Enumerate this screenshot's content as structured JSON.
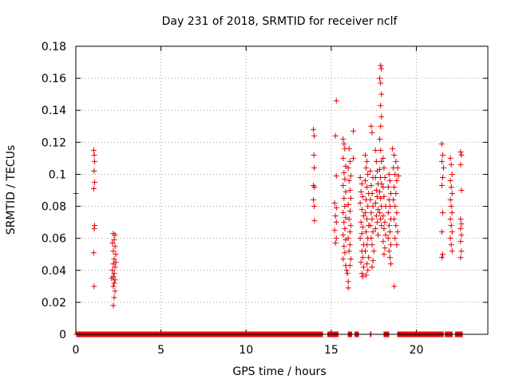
{
  "chart_data": {
    "type": "scatter",
    "title": "Day 231 of 2018, SRMTID for receiver nclf",
    "xlabel": "GPS time / hours",
    "ylabel": "SRMTID / TECUs",
    "xlim": [
      0,
      24.2
    ],
    "ylim": [
      0,
      0.18
    ],
    "x_ticks": [
      0,
      5,
      10,
      15,
      20
    ],
    "y_ticks": [
      0,
      0.02,
      0.04,
      0.06,
      0.08,
      0.1,
      0.12,
      0.14,
      0.16,
      0.18
    ],
    "x_tick_labels": [
      "0",
      "5",
      "10",
      "15",
      "20"
    ],
    "y_tick_labels": [
      "0",
      "0.02",
      "0.04",
      "0.06",
      "0.08",
      "0.1",
      "0.12",
      "0.14",
      "0.16",
      "0.18"
    ],
    "grid": true,
    "marker": "+",
    "color": "#e00000",
    "zero_ranges": [
      [
        0.05,
        14.5
      ],
      [
        14.8,
        15.4
      ],
      [
        16.0,
        16.2
      ],
      [
        16.4,
        16.6
      ],
      [
        17.3,
        17.35
      ],
      [
        18.1,
        18.4
      ],
      [
        18.9,
        21.6
      ],
      [
        21.7,
        22.1
      ],
      [
        22.3,
        22.7
      ]
    ],
    "points": [
      [
        0.0,
        0.088
      ],
      [
        1.05,
        0.115
      ],
      [
        1.08,
        0.112
      ],
      [
        1.1,
        0.108
      ],
      [
        1.07,
        0.102
      ],
      [
        1.1,
        0.095
      ],
      [
        1.05,
        0.091
      ],
      [
        1.08,
        0.066
      ],
      [
        1.1,
        0.068
      ],
      [
        1.05,
        0.051
      ],
      [
        1.07,
        0.03
      ],
      [
        2.2,
        0.063
      ],
      [
        2.3,
        0.062
      ],
      [
        2.25,
        0.059
      ],
      [
        2.15,
        0.057
      ],
      [
        2.3,
        0.055
      ],
      [
        2.2,
        0.052
      ],
      [
        2.35,
        0.05
      ],
      [
        2.25,
        0.047
      ],
      [
        2.2,
        0.044
      ],
      [
        2.3,
        0.042
      ],
      [
        2.15,
        0.04
      ],
      [
        2.25,
        0.038
      ],
      [
        2.2,
        0.036
      ],
      [
        2.3,
        0.034
      ],
      [
        2.25,
        0.032
      ],
      [
        2.2,
        0.03
      ],
      [
        2.3,
        0.027
      ],
      [
        2.25,
        0.023
      ],
      [
        2.2,
        0.018
      ],
      [
        2.35,
        0.045
      ],
      [
        2.1,
        0.035
      ],
      [
        13.95,
        0.128
      ],
      [
        14.0,
        0.124
      ],
      [
        13.98,
        0.112
      ],
      [
        14.0,
        0.104
      ],
      [
        13.95,
        0.093
      ],
      [
        14.02,
        0.092
      ],
      [
        13.95,
        0.084
      ],
      [
        14.0,
        0.08
      ],
      [
        14.02,
        0.071
      ],
      [
        15.3,
        0.146
      ],
      [
        15.25,
        0.124
      ],
      [
        15.3,
        0.099
      ],
      [
        15.2,
        0.082
      ],
      [
        15.3,
        0.079
      ],
      [
        15.25,
        0.074
      ],
      [
        15.3,
        0.07
      ],
      [
        15.2,
        0.065
      ],
      [
        15.3,
        0.06
      ],
      [
        15.25,
        0.057
      ],
      [
        15.7,
        0.122
      ],
      [
        15.75,
        0.119
      ],
      [
        15.8,
        0.116
      ],
      [
        15.7,
        0.11
      ],
      [
        15.85,
        0.105
      ],
      [
        15.75,
        0.101
      ],
      [
        15.8,
        0.097
      ],
      [
        15.7,
        0.093
      ],
      [
        15.85,
        0.089
      ],
      [
        15.75,
        0.085
      ],
      [
        15.8,
        0.08
      ],
      [
        15.7,
        0.076
      ],
      [
        15.85,
        0.073
      ],
      [
        15.75,
        0.07
      ],
      [
        15.8,
        0.066
      ],
      [
        15.7,
        0.062
      ],
      [
        15.85,
        0.059
      ],
      [
        15.75,
        0.055
      ],
      [
        15.8,
        0.051
      ],
      [
        15.7,
        0.047
      ],
      [
        15.85,
        0.043
      ],
      [
        15.9,
        0.04
      ],
      [
        16.0,
        0.033
      ],
      [
        16.0,
        0.029
      ],
      [
        15.95,
        0.038
      ],
      [
        16.05,
        0.116
      ],
      [
        16.1,
        0.108
      ],
      [
        16.0,
        0.104
      ],
      [
        16.15,
        0.099
      ],
      [
        16.05,
        0.096
      ],
      [
        16.1,
        0.09
      ],
      [
        16.15,
        0.085
      ],
      [
        16.0,
        0.081
      ],
      [
        16.1,
        0.077
      ],
      [
        16.05,
        0.072
      ],
      [
        16.15,
        0.068
      ],
      [
        16.1,
        0.064
      ],
      [
        16.0,
        0.06
      ],
      [
        16.1,
        0.056
      ],
      [
        16.05,
        0.052
      ],
      [
        16.15,
        0.047
      ],
      [
        16.1,
        0.043
      ],
      [
        16.3,
        0.127
      ],
      [
        16.3,
        0.11
      ],
      [
        16.7,
        0.098
      ],
      [
        16.8,
        0.094
      ],
      [
        16.75,
        0.089
      ],
      [
        16.85,
        0.086
      ],
      [
        16.7,
        0.082
      ],
      [
        16.8,
        0.078
      ],
      [
        16.9,
        0.074
      ],
      [
        16.75,
        0.07
      ],
      [
        16.85,
        0.067
      ],
      [
        16.8,
        0.063
      ],
      [
        16.7,
        0.06
      ],
      [
        16.9,
        0.056
      ],
      [
        16.8,
        0.052
      ],
      [
        16.85,
        0.048
      ],
      [
        16.75,
        0.045
      ],
      [
        16.9,
        0.042
      ],
      [
        16.8,
        0.038
      ],
      [
        16.85,
        0.036
      ],
      [
        17.0,
        0.112
      ],
      [
        17.1,
        0.108
      ],
      [
        17.05,
        0.104
      ],
      [
        17.15,
        0.1
      ],
      [
        17.0,
        0.096
      ],
      [
        17.1,
        0.092
      ],
      [
        17.2,
        0.088
      ],
      [
        17.05,
        0.084
      ],
      [
        17.15,
        0.08
      ],
      [
        17.0,
        0.076
      ],
      [
        17.1,
        0.072
      ],
      [
        17.2,
        0.068
      ],
      [
        17.05,
        0.064
      ],
      [
        17.15,
        0.06
      ],
      [
        17.1,
        0.056
      ],
      [
        17.0,
        0.052
      ],
      [
        17.2,
        0.048
      ],
      [
        17.1,
        0.044
      ],
      [
        17.15,
        0.04
      ],
      [
        17.05,
        0.037
      ],
      [
        17.35,
        0.13
      ],
      [
        17.4,
        0.126
      ],
      [
        17.3,
        0.102
      ],
      [
        17.45,
        0.098
      ],
      [
        17.35,
        0.093
      ],
      [
        17.4,
        0.088
      ],
      [
        17.3,
        0.084
      ],
      [
        17.45,
        0.08
      ],
      [
        17.35,
        0.076
      ],
      [
        17.4,
        0.072
      ],
      [
        17.3,
        0.068
      ],
      [
        17.45,
        0.064
      ],
      [
        17.35,
        0.06
      ],
      [
        17.4,
        0.056
      ],
      [
        17.5,
        0.052
      ],
      [
        17.45,
        0.046
      ],
      [
        17.4,
        0.042
      ],
      [
        17.6,
        0.115
      ],
      [
        17.65,
        0.108
      ],
      [
        17.7,
        0.102
      ],
      [
        17.6,
        0.098
      ],
      [
        17.75,
        0.094
      ],
      [
        17.65,
        0.09
      ],
      [
        17.7,
        0.086
      ],
      [
        17.6,
        0.082
      ],
      [
        17.75,
        0.078
      ],
      [
        17.65,
        0.074
      ],
      [
        17.7,
        0.07
      ],
      [
        17.6,
        0.066
      ],
      [
        17.75,
        0.062
      ],
      [
        17.9,
        0.168
      ],
      [
        17.95,
        0.166
      ],
      [
        17.85,
        0.16
      ],
      [
        17.9,
        0.157
      ],
      [
        17.95,
        0.15
      ],
      [
        17.9,
        0.143
      ],
      [
        17.95,
        0.136
      ],
      [
        17.9,
        0.13
      ],
      [
        17.85,
        0.122
      ],
      [
        17.9,
        0.115
      ],
      [
        17.95,
        0.108
      ],
      [
        17.85,
        0.103
      ],
      [
        17.9,
        0.098
      ],
      [
        17.95,
        0.094
      ],
      [
        17.85,
        0.089
      ],
      [
        17.9,
        0.085
      ],
      [
        17.95,
        0.08
      ],
      [
        17.85,
        0.076
      ],
      [
        17.9,
        0.072
      ],
      [
        17.95,
        0.068
      ],
      [
        18.05,
        0.11
      ],
      [
        18.1,
        0.104
      ],
      [
        18.15,
        0.098
      ],
      [
        18.05,
        0.092
      ],
      [
        18.1,
        0.086
      ],
      [
        18.2,
        0.08
      ],
      [
        18.05,
        0.074
      ],
      [
        18.15,
        0.07
      ],
      [
        18.1,
        0.066
      ],
      [
        18.2,
        0.062
      ],
      [
        18.05,
        0.058
      ],
      [
        18.15,
        0.054
      ],
      [
        18.1,
        0.05
      ],
      [
        18.4,
        0.1
      ],
      [
        18.45,
        0.096
      ],
      [
        18.35,
        0.092
      ],
      [
        18.5,
        0.088
      ],
      [
        18.4,
        0.084
      ],
      [
        18.45,
        0.08
      ],
      [
        18.35,
        0.076
      ],
      [
        18.5,
        0.072
      ],
      [
        18.4,
        0.068
      ],
      [
        18.45,
        0.064
      ],
      [
        18.35,
        0.06
      ],
      [
        18.5,
        0.056
      ],
      [
        18.4,
        0.052
      ],
      [
        18.45,
        0.048
      ],
      [
        18.5,
        0.044
      ],
      [
        18.7,
        0.03
      ],
      [
        18.6,
        0.116
      ],
      [
        18.7,
        0.112
      ],
      [
        18.8,
        0.108
      ],
      [
        18.65,
        0.104
      ],
      [
        18.75,
        0.1
      ],
      [
        18.85,
        0.096
      ],
      [
        18.7,
        0.092
      ],
      [
        18.8,
        0.088
      ],
      [
        18.65,
        0.084
      ],
      [
        18.75,
        0.08
      ],
      [
        18.85,
        0.076
      ],
      [
        18.7,
        0.072
      ],
      [
        18.8,
        0.068
      ],
      [
        18.9,
        0.064
      ],
      [
        18.75,
        0.06
      ],
      [
        18.85,
        0.056
      ],
      [
        18.9,
        0.104
      ],
      [
        18.95,
        0.099
      ],
      [
        21.5,
        0.119
      ],
      [
        21.55,
        0.112
      ],
      [
        21.5,
        0.108
      ],
      [
        21.6,
        0.104
      ],
      [
        21.55,
        0.098
      ],
      [
        21.5,
        0.093
      ],
      [
        21.55,
        0.076
      ],
      [
        21.5,
        0.064
      ],
      [
        21.55,
        0.05
      ],
      [
        21.5,
        0.048
      ],
      [
        22.0,
        0.11
      ],
      [
        22.05,
        0.106
      ],
      [
        22.1,
        0.1
      ],
      [
        22.0,
        0.096
      ],
      [
        22.05,
        0.092
      ],
      [
        22.1,
        0.088
      ],
      [
        22.0,
        0.084
      ],
      [
        22.05,
        0.08
      ],
      [
        22.1,
        0.076
      ],
      [
        22.0,
        0.072
      ],
      [
        22.05,
        0.068
      ],
      [
        22.1,
        0.064
      ],
      [
        22.0,
        0.06
      ],
      [
        22.05,
        0.056
      ],
      [
        22.1,
        0.052
      ],
      [
        22.6,
        0.114
      ],
      [
        22.65,
        0.112
      ],
      [
        22.6,
        0.106
      ],
      [
        22.65,
        0.09
      ],
      [
        22.6,
        0.072
      ],
      [
        22.65,
        0.069
      ],
      [
        22.6,
        0.066
      ],
      [
        22.65,
        0.062
      ],
      [
        22.6,
        0.058
      ],
      [
        22.65,
        0.052
      ],
      [
        22.6,
        0.048
      ]
    ]
  }
}
